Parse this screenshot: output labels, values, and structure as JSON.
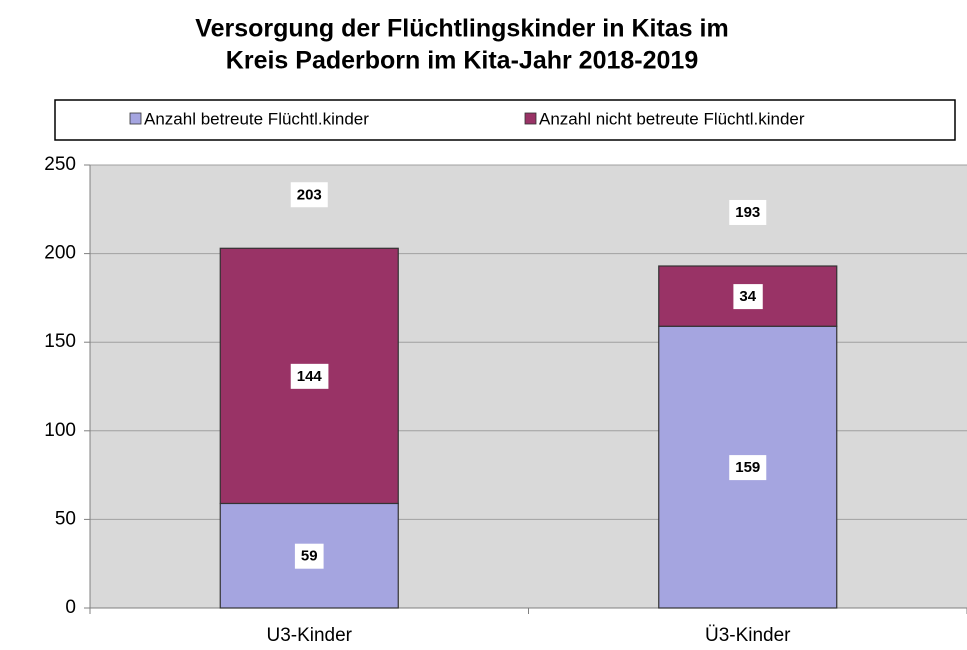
{
  "chart_data": {
    "type": "stacked_bar",
    "title": [
      "Versorgung der Flüchtlingskinder in Kitas im",
      "Kreis Paderborn im Kita-Jahr 2018-2019"
    ],
    "categories": [
      "U3-Kinder",
      "Ü3-Kinder"
    ],
    "series": [
      {
        "name": "Anzahl betreute Flüchtl.kinder",
        "color": "#a5a5e0",
        "values": [
          59,
          159
        ]
      },
      {
        "name": "Anzahl nicht betreute Flüchtl.kinder",
        "color": "#993366",
        "values": [
          144,
          34
        ]
      }
    ],
    "totals": [
      203,
      193
    ],
    "ylim": [
      0,
      250
    ],
    "yticks": [
      0,
      50,
      100,
      150,
      200,
      250
    ],
    "grid": true,
    "legend": "top"
  }
}
